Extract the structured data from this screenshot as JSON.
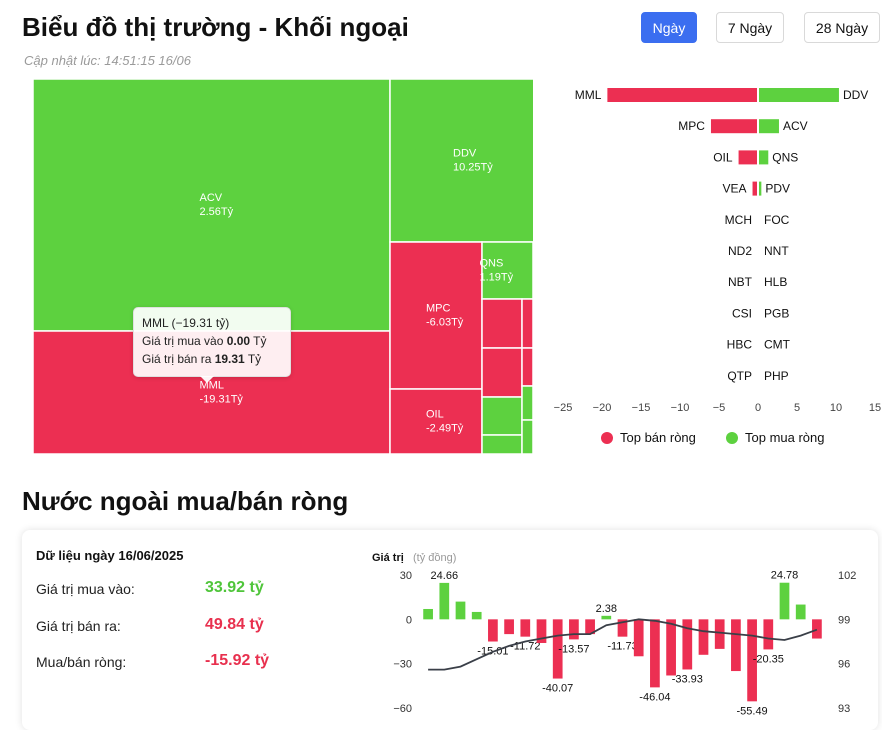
{
  "header": {
    "title": "Biểu đồ thị trường - Khối ngoại",
    "updated": "Cập nhật lúc: 14:51:15 16/06",
    "tabs": [
      "Ngày",
      "7 Ngày",
      "28 Ngày"
    ],
    "active_tab": "Ngày"
  },
  "colors": {
    "buy": "#5dd13f",
    "sell": "#ec2f52",
    "line": "#3a3f48",
    "axis": "#333333"
  },
  "treemap_tooltip": {
    "title": "MML (−19.31 tỷ)",
    "buy_label": "Giá trị mua vào ",
    "buy_value": "0.00",
    "buy_unit": " Tỷ",
    "sell_label": "Giá trị bán ra ",
    "sell_value": "19.31",
    "sell_unit": " Tỷ"
  },
  "legend": {
    "sell": "Top bán ròng",
    "buy": "Top mua ròng"
  },
  "section2": {
    "title": "Nước ngoài mua/bán ròng",
    "date_label": "Dữ liệu ngày 16/06/2025",
    "buy_label": "Giá trị mua vào:",
    "buy_value": "33.92 tỷ",
    "sell_label": "Giá trị bán ra:",
    "sell_value": "49.84 tỷ",
    "net_label": "Mua/bán ròng:",
    "net_value": "-15.92 tỷ"
  },
  "chart_data": [
    {
      "type": "treemap",
      "nodes": [
        {
          "label": "ACV",
          "value": "2.56Tỷ",
          "side": "buy"
        },
        {
          "label": "MML",
          "value": "-19.31Tỷ",
          "side": "sell"
        },
        {
          "label": "DDV",
          "value": "10.25Tỷ",
          "side": "buy"
        },
        {
          "label": "MPC",
          "value": "-6.03Tỷ",
          "side": "sell"
        },
        {
          "label": "QNS",
          "value": "1.19Tỷ",
          "side": "buy"
        },
        {
          "label": "OIL",
          "value": "-2.49Tỷ",
          "side": "sell"
        }
      ]
    },
    {
      "type": "bar",
      "orientation": "horizontal",
      "sell_labels": [
        "MML",
        "MPC",
        "OIL",
        "VEA",
        "MCH",
        "ND2",
        "NBT",
        "CSI",
        "HBC",
        "QTP"
      ],
      "sell_values": [
        -19.31,
        -6.03,
        -2.49,
        -0.7,
        0,
        0,
        0,
        0,
        0,
        0
      ],
      "buy_labels": [
        "DDV",
        "ACV",
        "QNS",
        "PDV",
        "FOC",
        "NNT",
        "HLB",
        "PGB",
        "CMT",
        "PHP"
      ],
      "buy_values": [
        10.25,
        2.56,
        1.19,
        0.3,
        0,
        0,
        0,
        0,
        0,
        0
      ],
      "xlim": [
        -25,
        15
      ],
      "xticks": [
        -25,
        -20,
        -15,
        -10,
        -5,
        0,
        5,
        10,
        15
      ]
    },
    {
      "type": "bar",
      "title": "Giá trị",
      "unit": "(tỷ đồng)",
      "values": [
        7,
        24.66,
        12,
        5,
        -15.01,
        -10,
        -11.72,
        -16,
        -40.07,
        -13.57,
        -10,
        2.38,
        -11.73,
        -25,
        -46.04,
        -38,
        -33.93,
        -24,
        -20,
        -35,
        -55.49,
        -20.35,
        24.78,
        10,
        -13
      ],
      "data_labels": [
        "",
        "24.66",
        "",
        "",
        "-15.01",
        "",
        "-11.72",
        "",
        "-40.07",
        "-13.57",
        "",
        "2.38",
        "-11.73",
        "",
        "-46.04",
        "",
        "-33.93",
        "",
        "",
        "",
        "-55.49",
        "-20.35",
        "24.78",
        "",
        ""
      ],
      "line_values": [
        95.6,
        95.6,
        95.8,
        96.3,
        96.8,
        97.2,
        97.5,
        97.7,
        97.9,
        98.0,
        98.0,
        98.6,
        98.8,
        99.0,
        98.9,
        98.7,
        98.4,
        98.2,
        98.1,
        98.0,
        97.9,
        97.7,
        97.6,
        97.9,
        98.3
      ],
      "ylim": [
        -60,
        30
      ],
      "yticks": [
        30,
        0,
        -30,
        -60
      ],
      "y2lim": [
        93,
        102
      ],
      "y2ticks": [
        102,
        99,
        96,
        93
      ]
    }
  ]
}
